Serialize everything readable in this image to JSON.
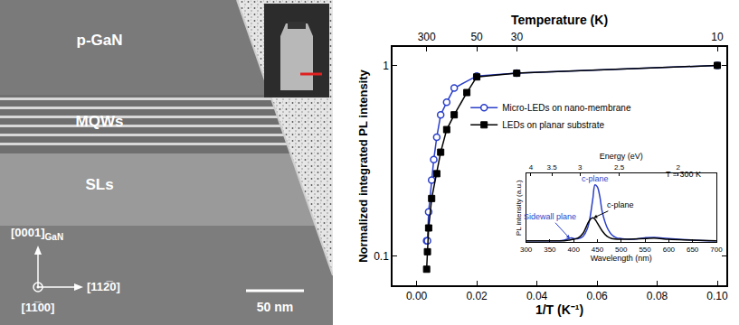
{
  "micrograph": {
    "layers": [
      "p-GaN",
      "MQWs",
      "SLs"
    ],
    "directions": {
      "up": "[0001]",
      "up_subscript": "GaN",
      "right": "[112̅0]",
      "out": "[11̅00]"
    },
    "scale_bar": "50 nm"
  },
  "chart_data": [
    {
      "type": "line",
      "xlabel": "1/T (K⁻¹)",
      "x2label": "Temperature (K)",
      "ylabel": "Normalized integrated PL intensity",
      "xlim": [
        -0.008,
        0.103
      ],
      "xticks": [
        {
          "value": 0,
          "label": "0.00"
        },
        {
          "value": 0.02,
          "label": "0.02"
        },
        {
          "value": 0.04,
          "label": "0.04"
        },
        {
          "value": 0.06,
          "label": "0.06"
        },
        {
          "value": 0.08,
          "label": "0.08"
        },
        {
          "value": 0.1,
          "label": "0.10"
        }
      ],
      "x2ticks": [
        {
          "value": 0.003333,
          "label": "300"
        },
        {
          "value": 0.02,
          "label": "50"
        },
        {
          "value": 0.033333,
          "label": "30"
        },
        {
          "value": 0.1,
          "label": "10"
        }
      ],
      "ylim": [
        0.07,
        1.25
      ],
      "yticks": [
        0.1,
        1
      ],
      "log": "y",
      "legend": "top",
      "series": [
        {
          "name": "Micro-LEDs on nano-membrane",
          "color": "#2a3fc9",
          "marker": "open circle",
          "x": [
            0.00333,
            0.0036,
            0.004,
            0.005,
            0.0057,
            0.0067,
            0.008,
            0.01,
            0.0125,
            0.02,
            0.0333,
            0.1
          ],
          "values": [
            0.12,
            0.12,
            0.17,
            0.25,
            0.32,
            0.42,
            0.55,
            0.64,
            0.76,
            0.88,
            0.91,
            1.0
          ]
        },
        {
          "name": "LEDs on planar substrate",
          "color": "#000000",
          "marker": "square",
          "x": [
            0.00333,
            0.0036,
            0.004,
            0.005,
            0.0067,
            0.008,
            0.01,
            0.0125,
            0.0167,
            0.02,
            0.0333,
            0.1
          ],
          "values": [
            0.085,
            0.105,
            0.14,
            0.2,
            0.27,
            0.35,
            0.46,
            0.55,
            0.72,
            0.87,
            0.91,
            1.0
          ]
        }
      ]
    },
    {
      "type": "line",
      "xlabel": "Wavelength (nm)",
      "x2label": "Energy (eV)",
      "ylabel": "PL intensity (a.u.)",
      "xlim": [
        300,
        700
      ],
      "xticks": [
        300,
        350,
        400,
        450,
        500,
        550,
        600,
        650,
        700
      ],
      "x2ticks": [
        {
          "value": 310,
          "label": "4"
        },
        {
          "value": 354.2,
          "label": "3.5"
        },
        {
          "value": 413.3,
          "label": "3"
        },
        {
          "value": 495.9,
          "label": "2.5"
        },
        {
          "value": 619.9,
          "label": "2"
        }
      ],
      "ylim": [
        0,
        0.9
      ],
      "tick_labels": "x",
      "series": [
        {
          "name": "Micro-LEDs on nano-membrane",
          "color": "#2a3fc9",
          "x": [
            300,
            320,
            340,
            360,
            370,
            380,
            390,
            395,
            400,
            410,
            420,
            430,
            440,
            445,
            450,
            455,
            460,
            470,
            480,
            490,
            500,
            520,
            550,
            570,
            600,
            650,
            700
          ],
          "values": [
            0.02,
            0.02,
            0.02,
            0.02,
            0.02,
            0.03,
            0.05,
            0.06,
            0.05,
            0.05,
            0.08,
            0.2,
            0.55,
            0.75,
            0.72,
            0.6,
            0.4,
            0.2,
            0.1,
            0.06,
            0.05,
            0.04,
            0.06,
            0.065,
            0.05,
            0.03,
            0.02
          ]
        },
        {
          "name": "LEDs on planar substrate",
          "color": "#000000",
          "x": [
            300,
            320,
            340,
            360,
            380,
            390,
            400,
            410,
            420,
            430,
            435,
            440,
            445,
            450,
            460,
            470,
            480,
            500,
            550,
            570,
            600,
            650,
            700
          ],
          "values": [
            0.02,
            0.02,
            0.02,
            0.02,
            0.02,
            0.03,
            0.04,
            0.06,
            0.12,
            0.25,
            0.3,
            0.32,
            0.3,
            0.25,
            0.15,
            0.08,
            0.05,
            0.04,
            0.05,
            0.055,
            0.04,
            0.03,
            0.02
          ]
        }
      ],
      "annotations": [
        {
          "text": "c-plane",
          "x": 445,
          "y": 0.75,
          "color": "#2a3fc9"
        },
        {
          "text": "T = 300 K",
          "x": 630,
          "y": 0.8,
          "color": "#000000"
        }
      ],
      "callouts": [
        {
          "text": "c-plane",
          "x": 442,
          "y": 0.32,
          "color": "#000000"
        },
        {
          "text": "Sidewall plane",
          "x": 392,
          "y": 0.05,
          "color": "#2a3fc9"
        }
      ]
    }
  ]
}
